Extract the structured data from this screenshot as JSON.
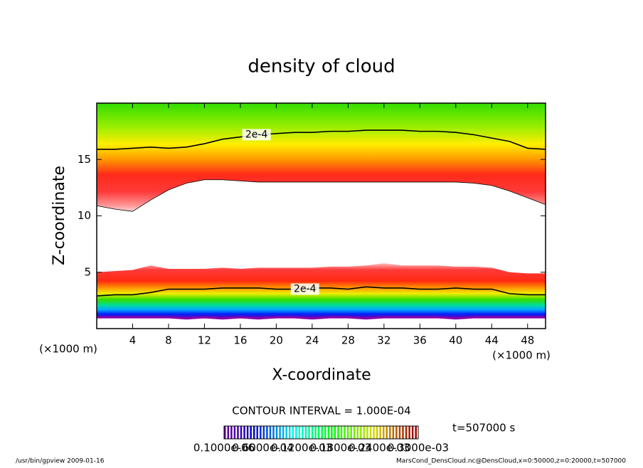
{
  "chart_data": {
    "type": "contour",
    "title": "density of cloud",
    "x_label": "X-coordinate",
    "y_label": "Z-coordinate",
    "x_unit": "(×1000 m)",
    "y_unit": "(×1000 m)",
    "xlim": [
      0,
      50
    ],
    "ylim": [
      0,
      20
    ],
    "xticks": [
      4,
      8,
      12,
      16,
      20,
      24,
      28,
      32,
      36,
      40,
      44,
      48
    ],
    "yticks": [
      5,
      10,
      15
    ],
    "x": [
      0,
      2,
      4,
      6,
      8,
      10,
      12,
      14,
      16,
      18,
      20,
      22,
      24,
      26,
      28,
      30,
      32,
      34,
      36,
      38,
      40,
      42,
      44,
      46,
      48,
      50
    ],
    "upper_top": [
      15.9,
      15.9,
      16.0,
      16.1,
      16.0,
      16.1,
      16.4,
      16.8,
      17.0,
      17.2,
      17.3,
      17.4,
      17.4,
      17.5,
      17.5,
      17.6,
      17.6,
      17.6,
      17.5,
      17.5,
      17.4,
      17.2,
      16.9,
      16.6,
      16.0,
      15.9
    ],
    "upper_bottom": [
      10.9,
      10.6,
      10.4,
      11.4,
      12.3,
      12.9,
      13.2,
      13.2,
      13.1,
      13.0,
      13.0,
      13.0,
      13.0,
      13.0,
      13.0,
      13.0,
      13.0,
      13.0,
      13.0,
      13.0,
      13.0,
      12.9,
      12.7,
      12.2,
      11.6,
      11.0
    ],
    "lower_top": [
      5.0,
      5.1,
      5.2,
      5.6,
      5.3,
      5.3,
      5.3,
      5.4,
      5.3,
      5.4,
      5.4,
      5.4,
      5.4,
      5.5,
      5.5,
      5.6,
      5.8,
      5.6,
      5.6,
      5.6,
      5.5,
      5.5,
      5.4,
      5.0,
      4.9,
      4.9
    ],
    "lower_2e4": [
      2.9,
      3.0,
      3.0,
      3.2,
      3.5,
      3.5,
      3.5,
      3.6,
      3.6,
      3.6,
      3.5,
      3.5,
      3.6,
      3.6,
      3.5,
      3.7,
      3.6,
      3.6,
      3.5,
      3.5,
      3.6,
      3.5,
      3.5,
      3.1,
      3.0,
      3.0
    ],
    "lower_bottom": [
      1.0,
      1.0,
      1.0,
      1.0,
      1.0,
      0.9,
      1.0,
      0.9,
      1.0,
      0.9,
      1.0,
      1.0,
      0.9,
      1.0,
      1.0,
      0.9,
      1.0,
      1.0,
      1.0,
      1.0,
      0.9,
      1.0,
      1.0,
      1.0,
      1.0,
      1.0
    ],
    "annotations": [
      {
        "text": "2e-4",
        "x": 17.8,
        "y": 17.2
      },
      {
        "text": "2e-4",
        "x": 23.2,
        "y": 3.5
      }
    ],
    "contour_interval": "CONTOUR INTERVAL = 1.000E-04",
    "time_label": "t=507000 s",
    "colorbar_labels": [
      "0.1000e-06",
      "0.6000e-04",
      "0.1200e-03",
      "0.1800e-03",
      "0.2400e-03",
      "0.3000e-03"
    ],
    "footer_left": "/usr/bin/gpview  2009-01-16",
    "footer_right": "MarsCond_DensCloud.nc@DensCloud,x=0:50000,z=0:20000,t=507000"
  }
}
